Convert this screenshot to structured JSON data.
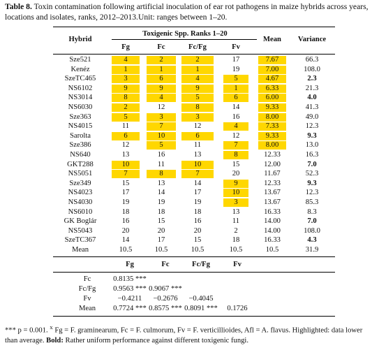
{
  "caption": {
    "label": "Table 8.",
    "text": "Toxin contamination following artificial inoculation of ear rot pathogens in maize hybrids across years, locations and isolates, ranks, 2012–2013.Unit: ranges between 1–20."
  },
  "header": {
    "hybrid": "Hybrid",
    "group": "Toxigenic Spp. Ranks 1–20",
    "mean": "Mean",
    "variance": "Variance",
    "cols": [
      "Fg",
      "Fc",
      "Fc/Fg",
      "Fv"
    ]
  },
  "highlight_color": "#ffd700",
  "rows": [
    {
      "name": "Sze521",
      "v": [
        "4",
        "2",
        "2",
        "17"
      ],
      "hl": [
        1,
        1,
        1,
        0
      ],
      "mean": "7.67",
      "mhl": 1,
      "var": "66.3",
      "vb": 0
    },
    {
      "name": "Kenéz",
      "v": [
        "1",
        "1",
        "1",
        "19"
      ],
      "hl": [
        1,
        1,
        1,
        0
      ],
      "mean": "7.00",
      "mhl": 1,
      "var": "108.0",
      "vb": 0
    },
    {
      "name": "SzeTC465",
      "v": [
        "3",
        "6",
        "4",
        "5"
      ],
      "hl": [
        1,
        1,
        1,
        1
      ],
      "mean": "4.67",
      "mhl": 1,
      "var": "2.3",
      "vb": 1
    },
    {
      "name": "NS6102",
      "v": [
        "9",
        "9",
        "9",
        "1"
      ],
      "hl": [
        1,
        1,
        1,
        1
      ],
      "mean": "6.33",
      "mhl": 1,
      "var": "21.3",
      "vb": 0
    },
    {
      "name": "NS3014",
      "v": [
        "8",
        "4",
        "5",
        "6"
      ],
      "hl": [
        1,
        1,
        1,
        1
      ],
      "mean": "6.00",
      "mhl": 1,
      "var": "4.0",
      "vb": 1
    },
    {
      "name": "NS6030",
      "v": [
        "2",
        "12",
        "8",
        "14"
      ],
      "hl": [
        1,
        0,
        1,
        0
      ],
      "mean": "9.33",
      "mhl": 1,
      "var": "41.3",
      "vb": 0
    },
    {
      "name": "Sze363",
      "v": [
        "5",
        "3",
        "3",
        "16"
      ],
      "hl": [
        1,
        1,
        1,
        0
      ],
      "mean": "8.00",
      "mhl": 1,
      "var": "49.0",
      "vb": 0
    },
    {
      "name": "NS4015",
      "v": [
        "11",
        "7",
        "12",
        "4"
      ],
      "hl": [
        0,
        1,
        0,
        1
      ],
      "mean": "7.33",
      "mhl": 1,
      "var": "12.3",
      "vb": 0
    },
    {
      "name": "Sarolta",
      "v": [
        "6",
        "10",
        "6",
        "12"
      ],
      "hl": [
        1,
        1,
        1,
        0
      ],
      "mean": "9.33",
      "mhl": 1,
      "var": "9.3",
      "vb": 1
    },
    {
      "name": "Sze386",
      "v": [
        "12",
        "5",
        "11",
        "7"
      ],
      "hl": [
        0,
        1,
        0,
        1
      ],
      "mean": "8.00",
      "mhl": 1,
      "var": "13.0",
      "vb": 0
    },
    {
      "name": "NS640",
      "v": [
        "13",
        "16",
        "13",
        "8"
      ],
      "hl": [
        0,
        0,
        0,
        1
      ],
      "mean": "12.33",
      "mhl": 0,
      "var": "16.3",
      "vb": 0
    },
    {
      "name": "GKT288",
      "v": [
        "10",
        "11",
        "10",
        "15"
      ],
      "hl": [
        1,
        0,
        1,
        0
      ],
      "mean": "12.00",
      "mhl": 0,
      "var": "7.0",
      "vb": 1
    },
    {
      "name": "NS5051",
      "v": [
        "7",
        "8",
        "7",
        "20"
      ],
      "hl": [
        1,
        1,
        1,
        0
      ],
      "mean": "11.67",
      "mhl": 0,
      "var": "52.3",
      "vb": 0
    },
    {
      "name": "Sze349",
      "v": [
        "15",
        "13",
        "14",
        "9"
      ],
      "hl": [
        0,
        0,
        0,
        1
      ],
      "mean": "12.33",
      "mhl": 0,
      "var": "9.3",
      "vb": 1
    },
    {
      "name": "NS4023",
      "v": [
        "17",
        "14",
        "17",
        "10"
      ],
      "hl": [
        0,
        0,
        0,
        1
      ],
      "mean": "13.67",
      "mhl": 0,
      "var": "12.3",
      "vb": 0
    },
    {
      "name": "NS4030",
      "v": [
        "19",
        "19",
        "19",
        "3"
      ],
      "hl": [
        0,
        0,
        0,
        1
      ],
      "mean": "13.67",
      "mhl": 0,
      "var": "85.3",
      "vb": 0
    },
    {
      "name": "NS6010",
      "v": [
        "18",
        "18",
        "18",
        "13"
      ],
      "hl": [
        0,
        0,
        0,
        0
      ],
      "mean": "16.33",
      "mhl": 0,
      "var": "8.3",
      "vb": 0
    },
    {
      "name": "GK Boglár",
      "v": [
        "16",
        "15",
        "16",
        "11"
      ],
      "hl": [
        0,
        0,
        0,
        0
      ],
      "mean": "14.00",
      "mhl": 0,
      "var": "7.0",
      "vb": 1
    },
    {
      "name": "NS5043",
      "v": [
        "20",
        "20",
        "20",
        "2"
      ],
      "hl": [
        0,
        0,
        0,
        0
      ],
      "mean": "14.00",
      "mhl": 0,
      "var": "108.0",
      "vb": 0
    },
    {
      "name": "SzeTC367",
      "v": [
        "14",
        "17",
        "15",
        "18"
      ],
      "hl": [
        0,
        0,
        0,
        0
      ],
      "mean": "16.33",
      "mhl": 0,
      "var": "4.3",
      "vb": 1
    },
    {
      "name": "Mean",
      "v": [
        "10.5",
        "10.5",
        "10.5",
        "10.5"
      ],
      "hl": [
        0,
        0,
        0,
        0
      ],
      "mean": "10.5",
      "mhl": 0,
      "var": "31.9",
      "vb": 0
    }
  ],
  "correlation": {
    "cols": [
      "Fg",
      "Fc",
      "Fc/Fg",
      "Fv"
    ],
    "rows": [
      {
        "label": "Fc",
        "values": [
          "0.8135 ***",
          "",
          "",
          ""
        ]
      },
      {
        "label": "Fc/Fg",
        "values": [
          "0.9563 ***",
          "0.9067 ***",
          "",
          ""
        ]
      },
      {
        "label": "Fv",
        "values": [
          "−0.4211",
          "−0.2676",
          "−0.4045",
          ""
        ]
      },
      {
        "label": "Mean",
        "values": [
          "0.7724 ***",
          "0.8575 ***",
          "0.8091 ***",
          "0.1726"
        ]
      }
    ]
  },
  "footnote": {
    "part1": "*** p = 0.001. ",
    "part2": "x",
    "part3": " Fg = F. graminearum, Fc = F. culmorum, Fv = F. verticillioides, Afl = A. flavus. Highlighted: data lower than average. ",
    "bold": "Bold:",
    "part4": " Rather uniform performance against different toxigenic fungi."
  }
}
